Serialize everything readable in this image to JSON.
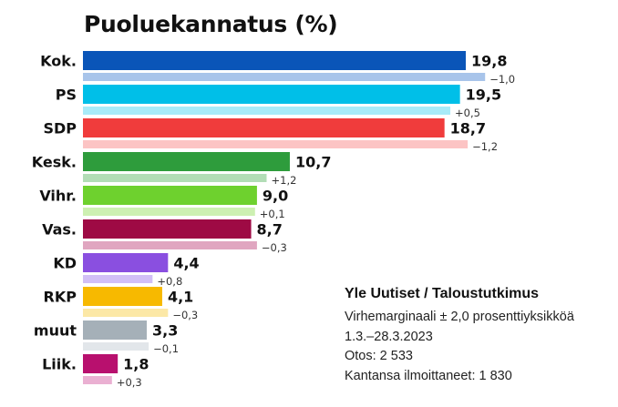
{
  "chart_data": {
    "type": "bar",
    "orientation": "horizontal",
    "title": "Puoluekannatus (%)",
    "categories": [
      "Kok.",
      "PS",
      "SDP",
      "Kesk.",
      "Vihr.",
      "Vas.",
      "KD",
      "RKP",
      "muut",
      "Liik."
    ],
    "values": [
      19.8,
      19.5,
      18.7,
      10.7,
      9.0,
      8.7,
      4.4,
      4.1,
      3.3,
      1.8
    ],
    "value_labels": [
      "19,8",
      "19,5",
      "18,7",
      "10,7",
      "9,0",
      "8,7",
      "4,4",
      "4,1",
      "3,3",
      "1,8"
    ],
    "changes": [
      -1.0,
      0.5,
      -1.2,
      1.2,
      0.1,
      -0.3,
      0.8,
      -0.3,
      -0.1,
      0.3
    ],
    "change_labels": [
      "−1,0",
      "+0,5",
      "−1,2",
      "+1,2",
      "+0,1",
      "−0,3",
      "+0,8",
      "−0,3",
      "−0,1",
      "+0,3"
    ],
    "colors": [
      "#0a55b8",
      "#00bfe8",
      "#f03c3c",
      "#2e9c3c",
      "#6ed12e",
      "#9e0a44",
      "#8a4fe0",
      "#f7b900",
      "#a5b0b8",
      "#b8106e"
    ],
    "prev_colors": [
      "#a8c4ea",
      "#a8ebf8",
      "#fcc4c4",
      "#b2ddb6",
      "#cdf0b2",
      "#e0a6c0",
      "#d2bff6",
      "#fce8a6",
      "#e2e6ea",
      "#eab0d2"
    ],
    "xlim": [
      0,
      20
    ],
    "grid": false,
    "legend": "none"
  },
  "source": {
    "title": "Yle Uutiset / Taloustutkimus",
    "lines": [
      "Virhemarginaali ± 2,0 prosenttiyksikköä",
      "1.3.–28.3.2023",
      "Otos: 2 533",
      "Kantansa ilmoittaneet: 1 830"
    ]
  }
}
